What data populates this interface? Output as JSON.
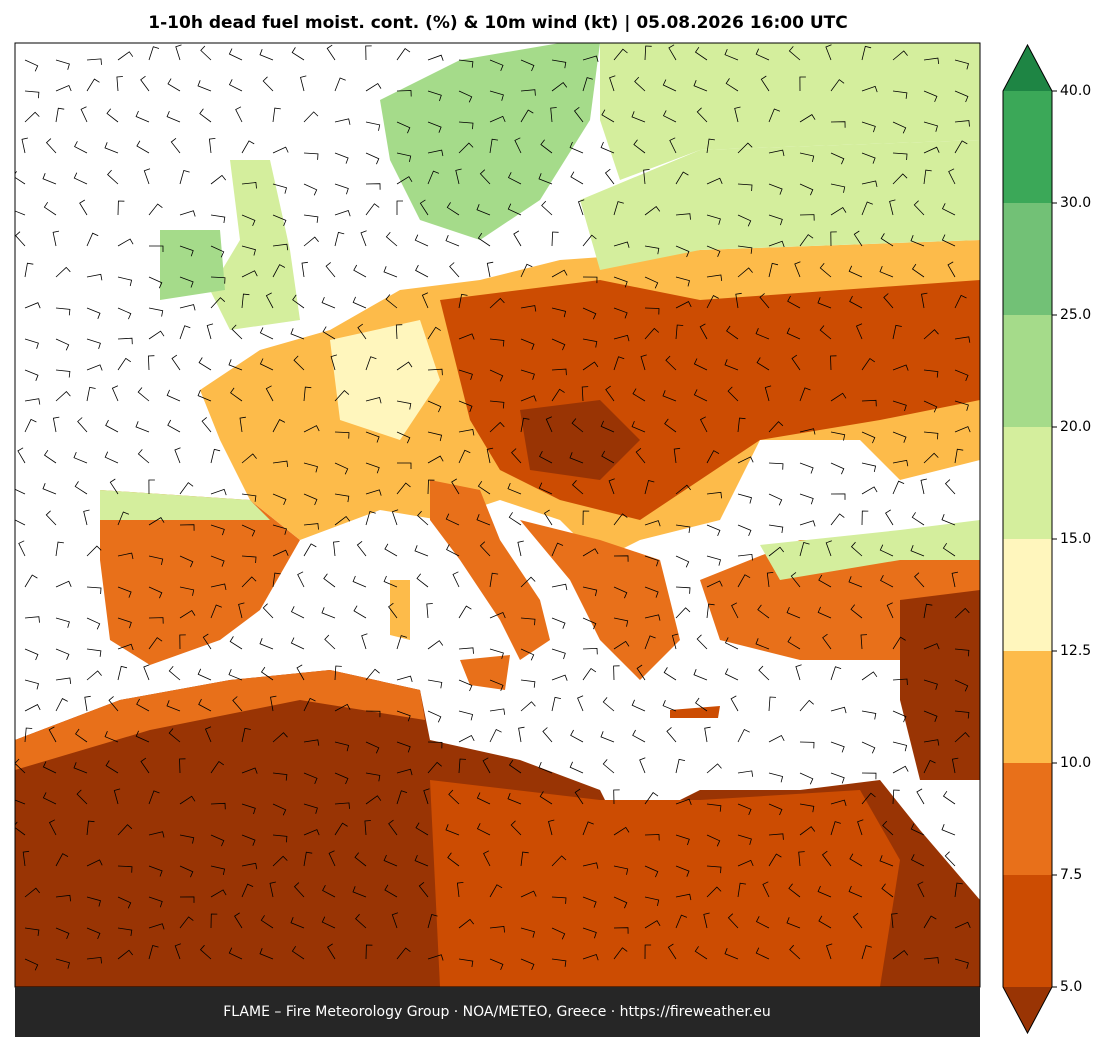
{
  "header": {
    "title": "1-10h dead fuel moist. cont. (%) & 10m wind (kt)  |  05.08.2026 16:00 UTC"
  },
  "colorbar": {
    "ticks": [
      {
        "value": 5,
        "label": "5.0"
      },
      7.5,
      {
        "value": 10,
        "label": "10.0"
      },
      12.5,
      {
        "value": 15,
        "label": "15.0"
      },
      {
        "value": 20,
        "label": "20.0"
      },
      {
        "value": 25,
        "label": "25.0"
      },
      {
        "value": 30,
        "label": "30.0"
      },
      {
        "value": 40,
        "label": "40.0"
      }
    ],
    "colors": [
      "#cc4c02",
      "#e8701a",
      "#fdbb4a",
      "#fff6bd",
      "#d4ee9d",
      "#a5db8a",
      "#72c176",
      "#3ba858"
    ],
    "under_color": "#993404",
    "over_color": "#1e8544"
  },
  "footer": {
    "text": "FLAME – Fire Meteorology Group · NOA/METEO, Greece · https://fireweather.eu"
  }
}
